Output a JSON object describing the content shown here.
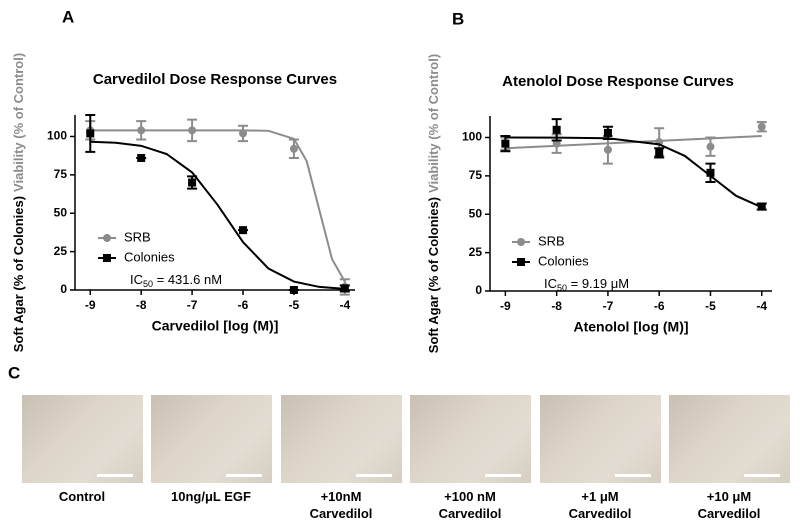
{
  "panels": [
    "A",
    "B",
    "C"
  ],
  "chart_data": [
    {
      "type": "line",
      "title": "Carvedilol Dose Response Curves",
      "xlabel": "Carvedilol [log (M)]",
      "ylabel": [
        {
          "text": "Soft Agar (% of Colonies)",
          "color": "#000000"
        },
        {
          "text": "Viability (% of Control)",
          "color": "#8c8c8c"
        }
      ],
      "x": [
        -9,
        -8,
        -7,
        -6,
        -5,
        -4
      ],
      "xlim": [
        -9.3,
        -3.8
      ],
      "xticks": [
        -9,
        -8,
        -7,
        -6,
        -5,
        -4
      ],
      "ylim": [
        0,
        114
      ],
      "yticks": [
        0,
        25,
        50,
        75,
        100
      ],
      "annotation": {
        "prefix": "IC",
        "sub": "50",
        "rest": " = 431.6 nM"
      },
      "series": [
        {
          "name": "SRB",
          "color": "#8c8c8c",
          "marker": "circle",
          "values": [
            104,
            104,
            104,
            102,
            92,
            2
          ],
          "errors": [
            6,
            6,
            7,
            5,
            6,
            5
          ],
          "fit_x": [
            -9,
            -8,
            -7,
            -6,
            -5.5,
            -5,
            -4.75,
            -4.5,
            -4.25,
            -4
          ],
          "fit_values": [
            104,
            104,
            104,
            104,
            103.7,
            98.5,
            84,
            52,
            20,
            5.5
          ]
        },
        {
          "name": "Colonies",
          "color": "#000000",
          "marker": "square",
          "values": [
            102,
            86,
            70,
            39,
            0,
            1
          ],
          "errors": [
            12,
            0,
            4,
            0,
            0,
            2
          ],
          "fit_x": [
            -9,
            -8.5,
            -8,
            -7.5,
            -7,
            -6.5,
            -6,
            -5.5,
            -5,
            -4.5,
            -4
          ],
          "fit_values": [
            96.6,
            95.9,
            93.9,
            88.6,
            76.6,
            55.5,
            31.2,
            14,
            5.5,
            2,
            0.7
          ]
        }
      ]
    },
    {
      "type": "line",
      "title": "Atenolol Dose Response Curves",
      "xlabel": "Atenolol [log (M)]",
      "ylabel": [
        {
          "text": "Soft Agar (% of Colonies)",
          "color": "#000000"
        },
        {
          "text": "Viability (% of Control)",
          "color": "#8c8c8c"
        }
      ],
      "x": [
        -9,
        -8,
        -7,
        -6,
        -5,
        -4
      ],
      "xlim": [
        -9.3,
        -3.8
      ],
      "xticks": [
        -9,
        -8,
        -7,
        -6,
        -5,
        -4
      ],
      "ylim": [
        0,
        114
      ],
      "yticks": [
        0,
        25,
        50,
        75,
        100
      ],
      "annotation": {
        "prefix": "IC",
        "sub": "50",
        "rest": " = 9.19 μM"
      },
      "series": [
        {
          "name": "SRB",
          "color": "#8c8c8c",
          "marker": "circle",
          "values": [
            96,
            96,
            92,
            97,
            94,
            107
          ],
          "errors": [
            4,
            6,
            9,
            9,
            6,
            3
          ],
          "fit_x": [
            -9,
            -4
          ],
          "fit_values": [
            93,
            101
          ]
        },
        {
          "name": "Colonies",
          "color": "#000000",
          "marker": "square",
          "values": [
            96,
            105,
            103,
            90,
            77,
            55
          ],
          "errors": [
            5,
            7,
            4,
            3,
            6,
            2
          ],
          "fit_x": [
            -9,
            -8,
            -7,
            -6,
            -5.5,
            -5,
            -4.5,
            -4
          ],
          "fit_values": [
            100,
            99.9,
            99.5,
            95.5,
            88,
            75,
            62,
            54.5
          ]
        }
      ]
    }
  ],
  "images": [
    [
      "Control"
    ],
    [
      "10ng/μL EGF"
    ],
    [
      "+10nM",
      "Carvedilol"
    ],
    [
      "+100 nM",
      "Carvedilol"
    ],
    [
      "+1 μM",
      "Carvedilol"
    ],
    [
      "+10 μM",
      "Carvedilol"
    ]
  ]
}
